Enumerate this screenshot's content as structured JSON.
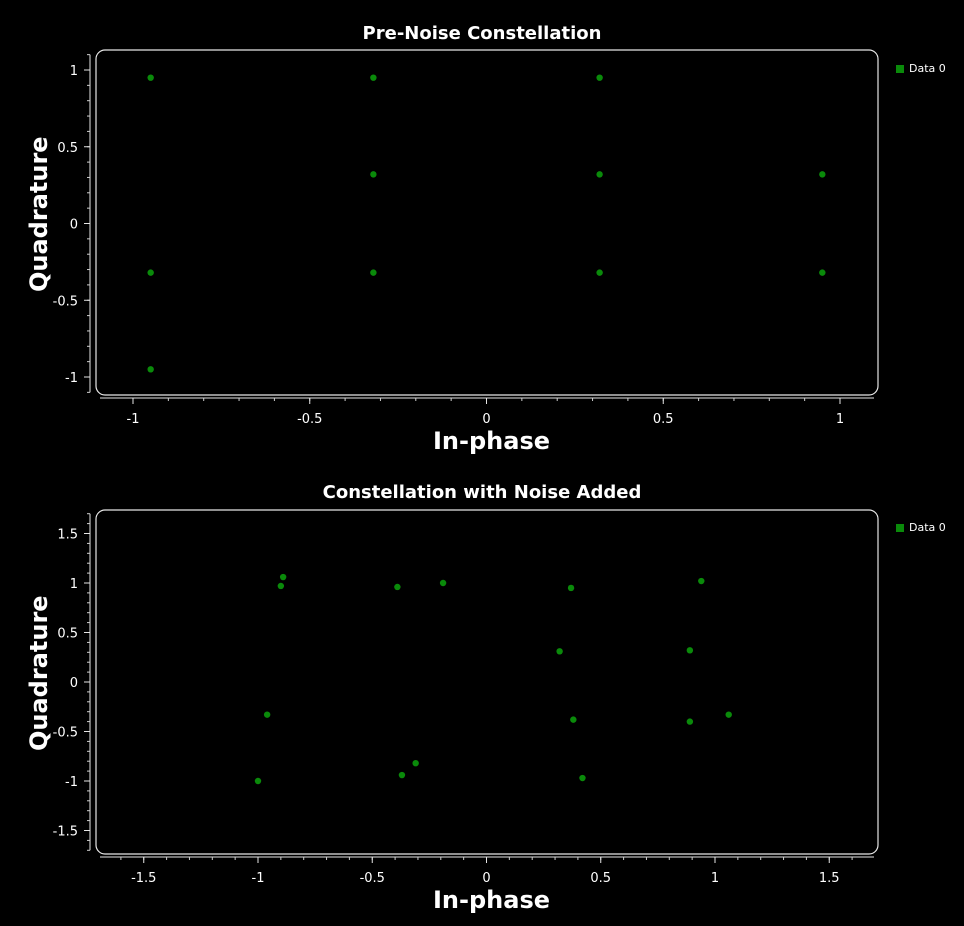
{
  "chart_data": [
    {
      "type": "scatter",
      "title": "Pre-Noise Constellation",
      "xlabel": "In-phase",
      "ylabel": "Quadrature",
      "xlim": [
        -1.1,
        1.1
      ],
      "ylim": [
        -1.1,
        1.1
      ],
      "xticks": [
        -1,
        -0.5,
        0,
        0.5,
        1
      ],
      "yticks": [
        -1,
        -0.5,
        0,
        0.5,
        1
      ],
      "xtick_labels": [
        "-1",
        "-0.5",
        "0",
        "0.5",
        "1"
      ],
      "ytick_labels": [
        "-1",
        "-0.5",
        "0",
        "0.5",
        "1"
      ],
      "legend_position": "top-right",
      "series": [
        {
          "name": "Data 0",
          "color": "#0a8a0a",
          "x": [
            -0.95,
            -0.32,
            0.32,
            -0.32,
            0.32,
            0.95,
            -0.95,
            -0.32,
            0.32,
            0.95,
            -0.95
          ],
          "y": [
            0.95,
            0.95,
            0.95,
            0.32,
            0.32,
            0.32,
            -0.32,
            -0.32,
            -0.32,
            -0.32,
            -0.95
          ]
        }
      ]
    },
    {
      "type": "scatter",
      "title": "Constellation with Noise Added",
      "xlabel": "In-phase",
      "ylabel": "Quadrature",
      "xlim": [
        -1.7,
        1.7
      ],
      "ylim": [
        -1.7,
        1.7
      ],
      "xticks": [
        -1.5,
        -1,
        -0.5,
        0,
        0.5,
        1,
        1.5
      ],
      "yticks": [
        -1.5,
        -1,
        -0.5,
        0,
        0.5,
        1,
        1.5
      ],
      "xtick_labels": [
        "-1.5",
        "-1",
        "-0.5",
        "0",
        "0.5",
        "1",
        "1.5"
      ],
      "ytick_labels": [
        "-1.5",
        "-1",
        "-0.5",
        "0",
        "0.5",
        "1",
        "1.5"
      ],
      "legend_position": "top-right",
      "series": [
        {
          "name": "Data 0",
          "color": "#0a8a0a",
          "x": [
            -0.89,
            -0.9,
            -0.39,
            -0.19,
            0.37,
            0.94,
            0.32,
            0.89,
            -0.96,
            0.38,
            0.89,
            1.06,
            -1.0,
            -0.37,
            -0.31,
            0.42
          ],
          "y": [
            1.06,
            0.97,
            0.96,
            1.0,
            0.95,
            1.02,
            0.31,
            0.32,
            -0.33,
            -0.38,
            -0.4,
            -0.33,
            -1.0,
            -0.94,
            -0.82,
            -0.97
          ]
        }
      ]
    }
  ]
}
